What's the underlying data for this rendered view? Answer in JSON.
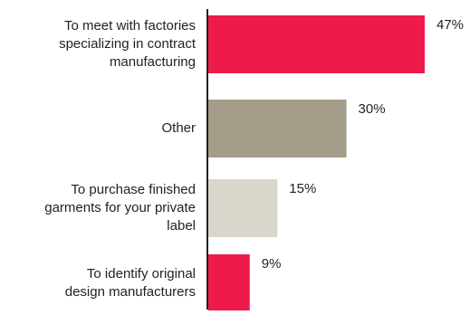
{
  "chart_data": {
    "type": "bar",
    "orientation": "horizontal",
    "categories": [
      "To meet with factories\nspecializing in contract\nmanufacturing",
      "Other",
      "To purchase finished\ngarments for your private\nlabel",
      "To identify original\ndesign manufacturers"
    ],
    "values": [
      47,
      30,
      15,
      9
    ],
    "value_labels": [
      "47%",
      "30%",
      "15%",
      "9%"
    ],
    "bar_colors": [
      "#ee1b4a",
      "#a39d89",
      "#d9d6cc",
      "#ee1b4a"
    ],
    "axis_color": "#231f20",
    "xlim": [
      0,
      47
    ],
    "grid": false,
    "legend": "none",
    "title": "",
    "xlabel": "",
    "ylabel": ""
  }
}
